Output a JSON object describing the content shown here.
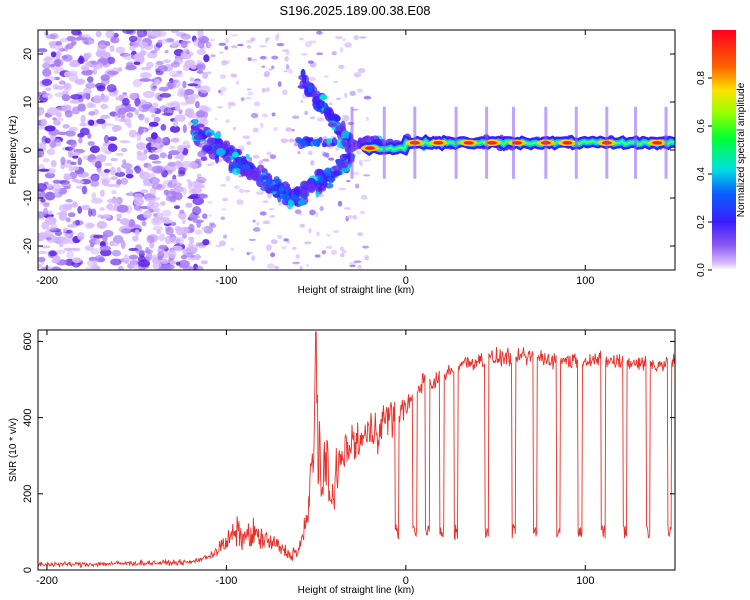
{
  "figure": {
    "title": "S196.2025.189.00.38.E08"
  },
  "colors": {
    "snr_line": "#e8302a",
    "frame": "#000000"
  },
  "chart_data": [
    {
      "type": "heatmap",
      "xlabel": "Height of straight line (km)",
      "ylabel": "Frequency (Hz)",
      "xlim": [
        -205,
        150
      ],
      "ylim": [
        -25,
        25
      ],
      "xticks": [
        -200,
        -100,
        0,
        100
      ],
      "yticks": [
        -20,
        -10,
        0,
        10,
        20
      ],
      "colorbar": {
        "label": "Normalized spectral amplitude",
        "range": [
          0,
          1
        ],
        "ticks": [
          0.0,
          0.2,
          0.4,
          0.6,
          0.8
        ],
        "colormap": "rainbow (magenta-blue-cyan-green-yellow-red)"
      },
      "ridge": [
        {
          "x": -110,
          "y": 3
        },
        {
          "x": -95,
          "y": 0
        },
        {
          "x": -85,
          "y": -2
        },
        {
          "x": -70,
          "y": -6
        },
        {
          "x": -60,
          "y": -11
        },
        {
          "x": -52,
          "y": 15
        },
        {
          "x": -45,
          "y": 11
        },
        {
          "x": -38,
          "y": 5
        },
        {
          "x": -30,
          "y": 1
        },
        {
          "x": -20,
          "y": 0
        },
        {
          "x": 0,
          "y": 1
        },
        {
          "x": 20,
          "y": 1.5
        },
        {
          "x": 50,
          "y": 1.5
        },
        {
          "x": 80,
          "y": 2
        },
        {
          "x": 100,
          "y": 1.5
        },
        {
          "x": 150,
          "y": 1.5
        }
      ]
    },
    {
      "type": "line",
      "xlabel": "Height of straight line (km)",
      "ylabel": "SNR (10 * v/v)",
      "xlim": [
        -205,
        150
      ],
      "ylim": [
        0,
        630
      ],
      "xticks": [
        -200,
        -100,
        0,
        100
      ],
      "yticks": [
        0,
        200,
        400,
        600
      ],
      "series": [
        {
          "x": [
            -205,
            -180,
            -150,
            -120,
            -110,
            -100,
            -95,
            -90,
            -85,
            -80,
            -75,
            -70,
            -65,
            -60,
            -55,
            -52,
            -50,
            -48,
            -46,
            -44,
            -42,
            -40,
            -38,
            -35,
            -30,
            -25,
            -20,
            -15,
            -10,
            -5,
            0,
            5,
            10,
            15,
            20,
            25,
            30,
            40,
            50,
            60,
            70,
            80,
            90,
            100,
            110,
            120,
            130,
            140,
            150
          ],
          "y": [
            15,
            15,
            18,
            20,
            35,
            70,
            100,
            85,
            95,
            80,
            70,
            60,
            40,
            50,
            120,
            300,
            590,
            250,
            200,
            290,
            180,
            240,
            260,
            300,
            330,
            340,
            360,
            380,
            400,
            410,
            430,
            460,
            500,
            480,
            520,
            520,
            540,
            550,
            555,
            560,
            560,
            555,
            550,
            555,
            550,
            545,
            545,
            540,
            545
          ]
        }
      ]
    }
  ]
}
